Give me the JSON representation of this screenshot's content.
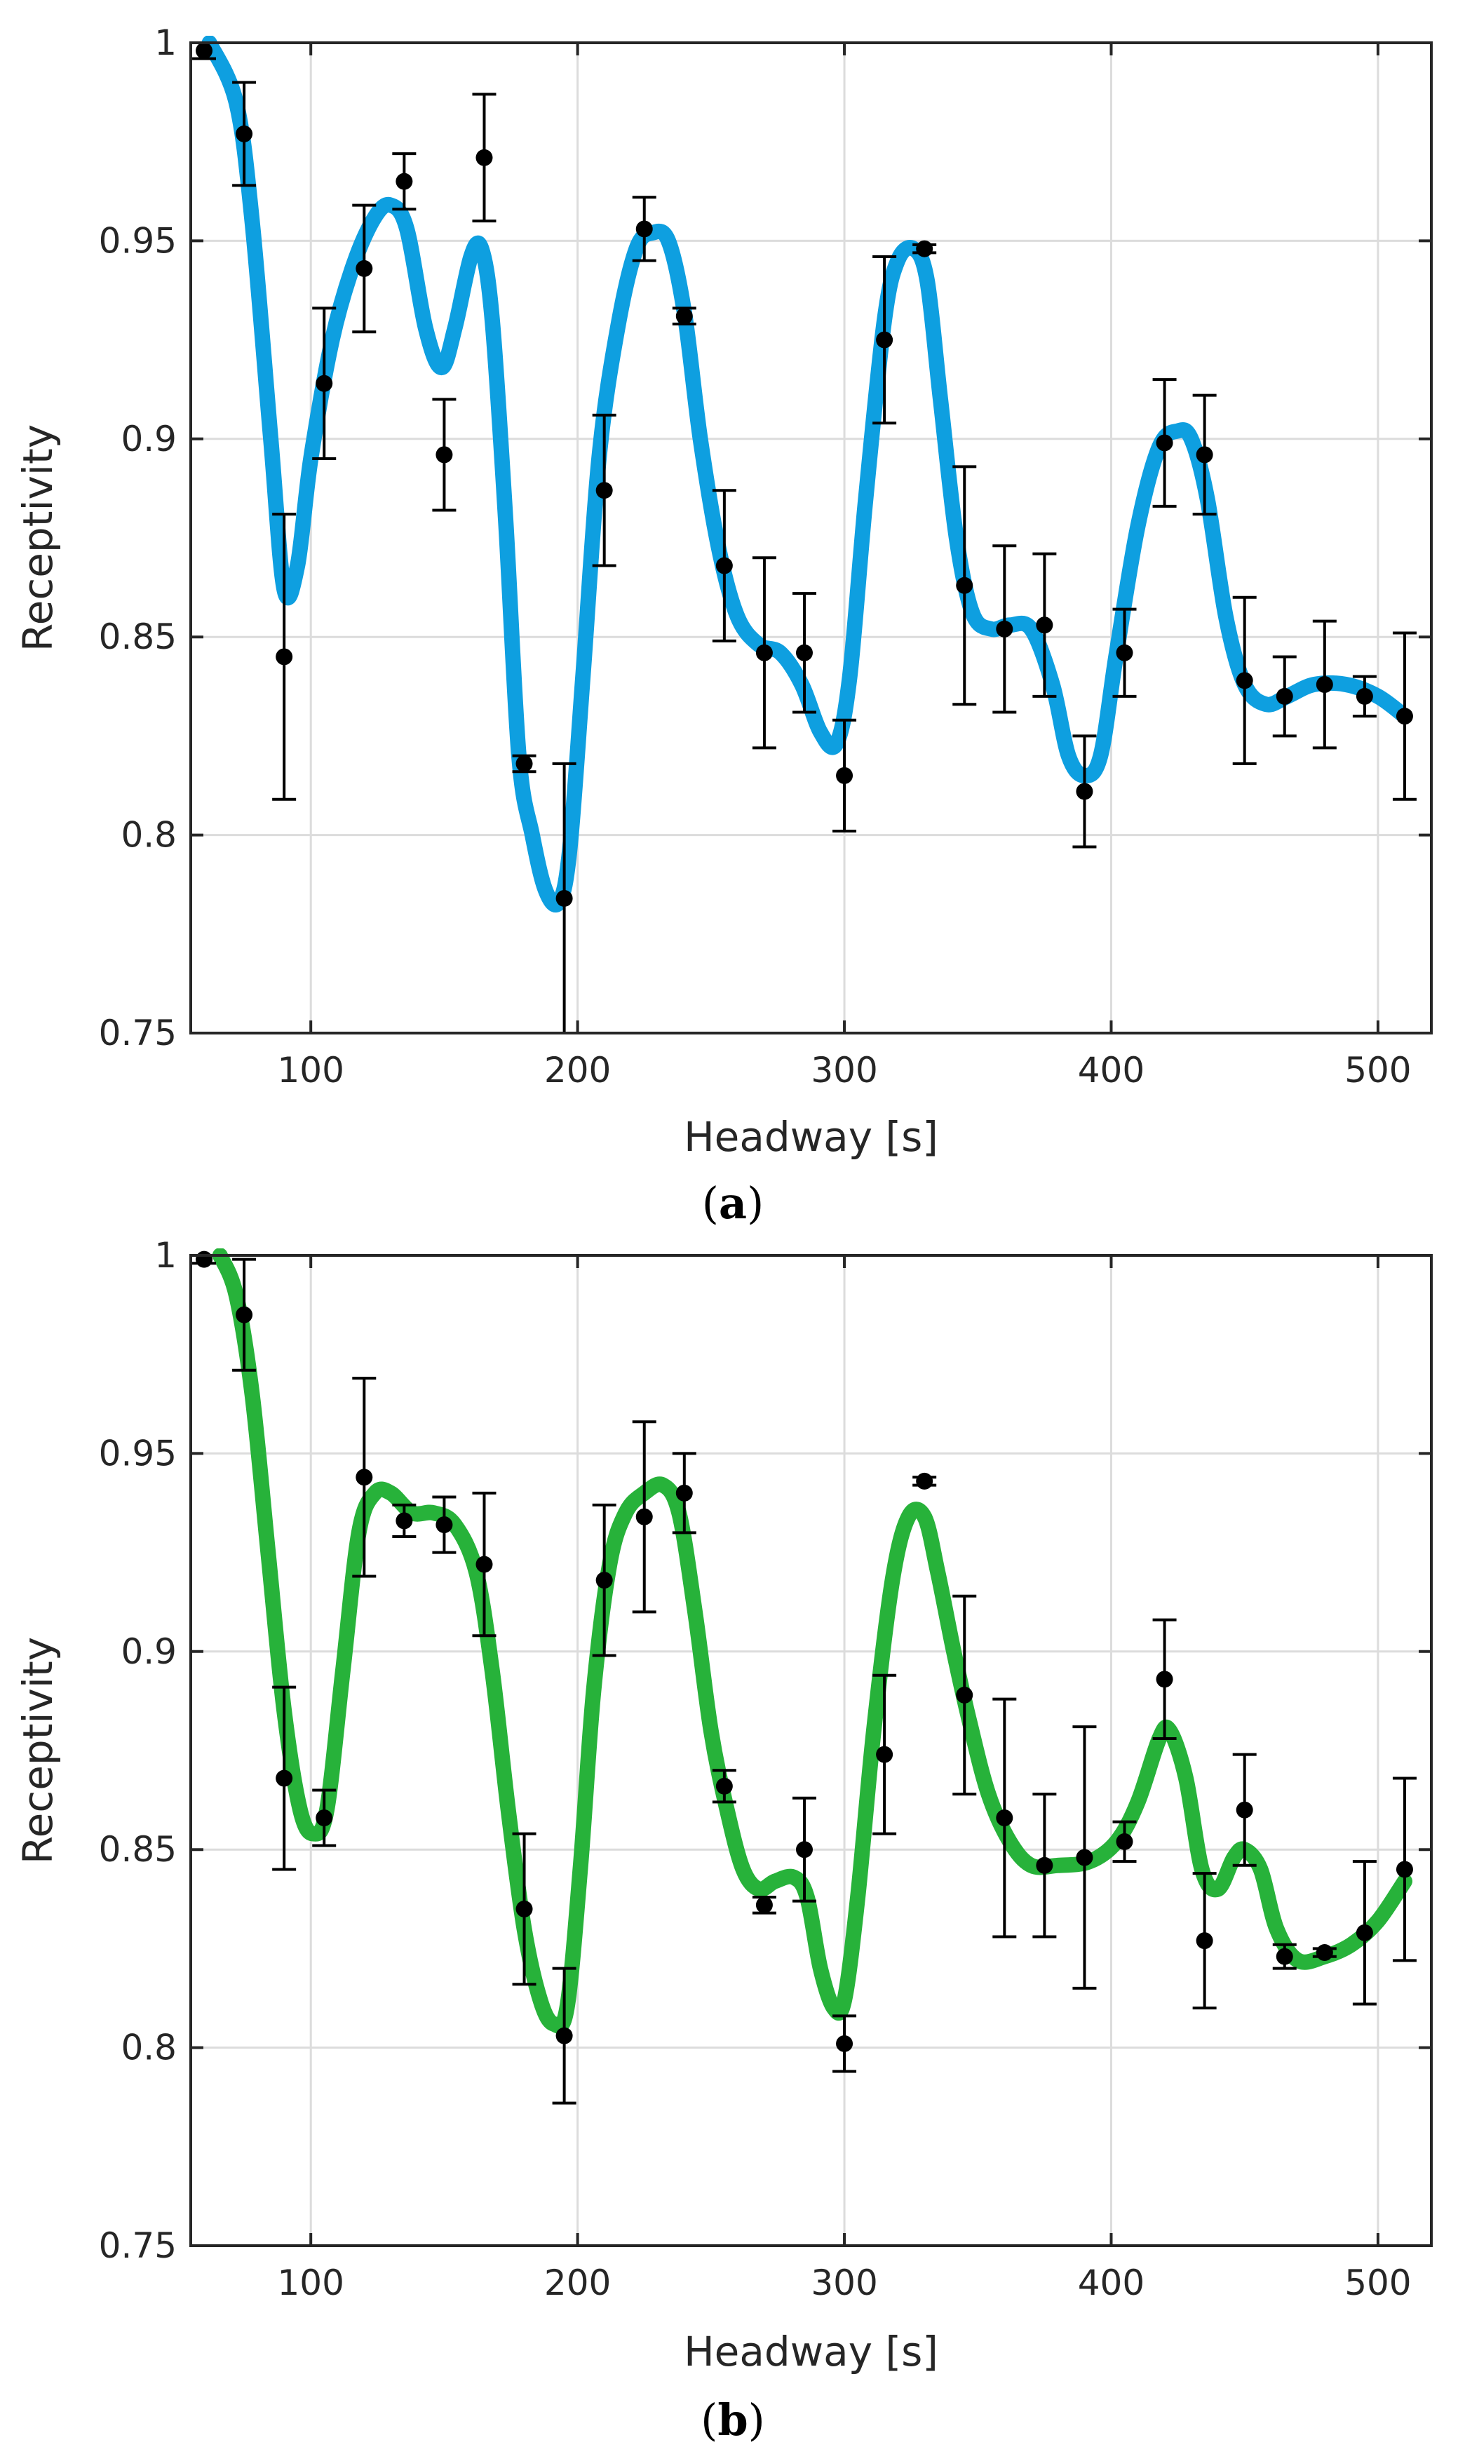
{
  "chart_data": [
    {
      "type": "line",
      "panel_label": "a",
      "title": "",
      "xlabel": "Headway [s]",
      "ylabel": "Receptivity",
      "xlim": [
        55,
        520
      ],
      "ylim": [
        0.75,
        1.0
      ],
      "xticks": [
        100,
        200,
        300,
        400,
        500
      ],
      "yticks": [
        0.75,
        0.8,
        0.85,
        0.9,
        0.95,
        1.0
      ],
      "ytick_labels": [
        "0.75",
        "0.8",
        "0.85",
        "0.9",
        "0.95",
        "1"
      ],
      "grid": true,
      "colors": {
        "fit": "#0e9fe0",
        "points": "#000000"
      },
      "fit_curve": {
        "name": "fit",
        "x": [
          62,
          72,
          78,
          85,
          90,
          95,
          100,
          108,
          116,
          124,
          130,
          136,
          143,
          149,
          154,
          160,
          164,
          168,
          173,
          178,
          183,
          188,
          193,
          197,
          202,
          208,
          215,
          222,
          228,
          234,
          240,
          246,
          253,
          260,
          268,
          276,
          284,
          291,
          297,
          302,
          308,
          315,
          320,
          326,
          331,
          336,
          342,
          348,
          355,
          362,
          370,
          378,
          384,
          390,
          396,
          402,
          410,
          418,
          425,
          430,
          436,
          443,
          450,
          458,
          466,
          476,
          488,
          500,
          510
        ],
        "y": [
          1.0,
          0.985,
          0.955,
          0.9,
          0.862,
          0.868,
          0.895,
          0.925,
          0.944,
          0.956,
          0.959,
          0.953,
          0.928,
          0.918,
          0.928,
          0.946,
          0.948,
          0.93,
          0.88,
          0.82,
          0.8,
          0.786,
          0.783,
          0.796,
          0.84,
          0.895,
          0.928,
          0.948,
          0.952,
          0.95,
          0.932,
          0.9,
          0.872,
          0.855,
          0.848,
          0.846,
          0.838,
          0.826,
          0.823,
          0.84,
          0.885,
          0.93,
          0.945,
          0.948,
          0.94,
          0.91,
          0.875,
          0.856,
          0.852,
          0.853,
          0.852,
          0.838,
          0.82,
          0.815,
          0.82,
          0.846,
          0.878,
          0.898,
          0.902,
          0.9,
          0.885,
          0.855,
          0.838,
          0.833,
          0.835,
          0.838,
          0.838,
          0.835,
          0.83
        ]
      },
      "points": {
        "x": [
          60,
          75,
          90,
          105,
          120,
          135,
          150,
          165,
          180,
          195,
          210,
          225,
          240,
          255,
          270,
          285,
          300,
          315,
          330,
          345,
          360,
          375,
          390,
          405,
          420,
          435,
          450,
          465,
          480,
          495,
          510
        ],
        "y": [
          0.998,
          0.977,
          0.845,
          0.914,
          0.943,
          0.965,
          0.896,
          0.971,
          0.818,
          0.784,
          0.887,
          0.953,
          0.931,
          0.868,
          0.846,
          0.846,
          0.815,
          0.925,
          0.948,
          0.863,
          0.852,
          0.853,
          0.811,
          0.846,
          0.899,
          0.896,
          0.839,
          0.835,
          0.838,
          0.835,
          0.83
        ],
        "err": [
          0.002,
          0.013,
          0.036,
          0.019,
          0.016,
          0.007,
          0.014,
          0.016,
          0.002,
          0.034,
          0.019,
          0.008,
          0.002,
          0.019,
          0.024,
          0.015,
          0.014,
          0.021,
          0.001,
          0.03,
          0.021,
          0.018,
          0.014,
          0.011,
          0.016,
          0.015,
          0.021,
          0.01,
          0.016,
          0.005,
          0.021
        ]
      }
    },
    {
      "type": "line",
      "panel_label": "b",
      "title": "",
      "xlabel": "Headway [s]",
      "ylabel": "Receptivity",
      "xlim": [
        55,
        520
      ],
      "ylim": [
        0.75,
        1.0
      ],
      "xticks": [
        100,
        200,
        300,
        400,
        500
      ],
      "yticks": [
        0.75,
        0.8,
        0.85,
        0.9,
        0.95,
        1.0
      ],
      "ytick_labels": [
        "0.75",
        "0.8",
        "0.85",
        "0.9",
        "0.95",
        "1"
      ],
      "grid": true,
      "colors": {
        "fit": "#27b23a",
        "points": "#000000"
      },
      "fit_curve": {
        "name": "fit",
        "x": [
          66,
          72,
          78,
          84,
          90,
          96,
          101,
          106,
          112,
          118,
          124,
          130,
          138,
          146,
          154,
          162,
          168,
          174,
          180,
          186,
          191,
          196,
          201,
          206,
          212,
          218,
          225,
          232,
          238,
          244,
          250,
          256,
          262,
          268,
          274,
          281,
          286,
          291,
          296,
          300,
          305,
          311,
          318,
          324,
          330,
          335,
          341,
          347,
          354,
          362,
          370,
          380,
          392,
          402,
          410,
          418,
          422,
          428,
          434,
          440,
          446,
          450,
          456,
          462,
          470,
          480,
          490,
          500,
          510
        ],
        "y": [
          1.0,
          0.99,
          0.965,
          0.925,
          0.885,
          0.86,
          0.854,
          0.86,
          0.895,
          0.93,
          0.94,
          0.94,
          0.935,
          0.935,
          0.932,
          0.92,
          0.895,
          0.86,
          0.83,
          0.812,
          0.806,
          0.81,
          0.845,
          0.89,
          0.922,
          0.935,
          0.94,
          0.942,
          0.935,
          0.91,
          0.88,
          0.86,
          0.845,
          0.84,
          0.842,
          0.843,
          0.838,
          0.82,
          0.81,
          0.812,
          0.838,
          0.88,
          0.918,
          0.934,
          0.934,
          0.92,
          0.9,
          0.882,
          0.864,
          0.852,
          0.846,
          0.846,
          0.847,
          0.852,
          0.862,
          0.878,
          0.88,
          0.868,
          0.845,
          0.84,
          0.848,
          0.85,
          0.845,
          0.83,
          0.822,
          0.823,
          0.826,
          0.832,
          0.842
        ]
      },
      "points": {
        "x": [
          60,
          75,
          90,
          105,
          120,
          135,
          150,
          165,
          180,
          195,
          210,
          225,
          240,
          255,
          270,
          285,
          300,
          315,
          330,
          345,
          360,
          375,
          390,
          405,
          420,
          435,
          450,
          465,
          480,
          495,
          510
        ],
        "y": [
          0.999,
          0.985,
          0.868,
          0.858,
          0.944,
          0.933,
          0.932,
          0.922,
          0.835,
          0.803,
          0.918,
          0.934,
          0.94,
          0.866,
          0.836,
          0.85,
          0.801,
          0.874,
          0.943,
          0.889,
          0.858,
          0.846,
          0.848,
          0.852,
          0.893,
          0.827,
          0.86,
          0.823,
          0.824,
          0.829,
          0.845
        ],
        "err": [
          0.001,
          0.014,
          0.023,
          0.007,
          0.025,
          0.004,
          0.007,
          0.018,
          0.019,
          0.017,
          0.019,
          0.024,
          0.01,
          0.004,
          0.002,
          0.013,
          0.007,
          0.02,
          0.001,
          0.025,
          0.03,
          0.018,
          0.033,
          0.005,
          0.015,
          0.017,
          0.014,
          0.003,
          0.001,
          0.018,
          0.023
        ]
      }
    }
  ]
}
